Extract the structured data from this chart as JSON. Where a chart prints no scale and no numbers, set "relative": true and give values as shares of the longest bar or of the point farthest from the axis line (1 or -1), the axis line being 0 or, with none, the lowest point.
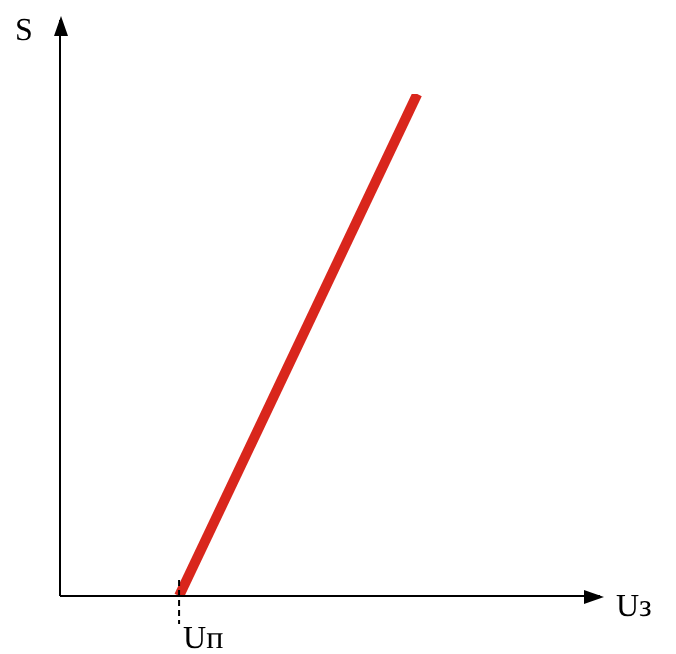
{
  "chart_data": {
    "type": "line",
    "relative": true,
    "xlabel": "Uз",
    "ylabel": "S",
    "categories": [
      null,
      null,
      null,
      null,
      null,
      null,
      null,
      null,
      null,
      null,
      null,
      null,
      null,
      null
    ],
    "series": [
      {
        "color": "#d9261c",
        "values": [
          null,
          null,
          null,
          0,
          null,
          null,
          null,
          null,
          null,
          1,
          null,
          null,
          null,
          null
        ]
      }
    ],
    "annotations": [
      "Uп"
    ],
    "tick_labels": false,
    "legend": false,
    "marker": "none",
    "line_style": "solid"
  }
}
